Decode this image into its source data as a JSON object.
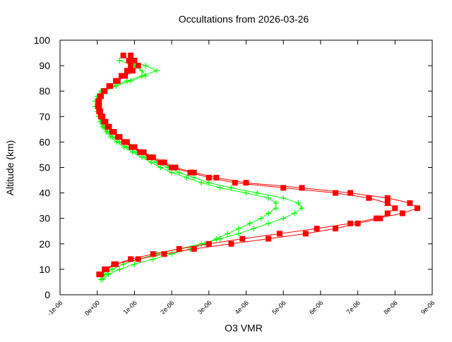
{
  "chart_data": {
    "type": "scatter",
    "title": "Occultations from 2026-03-26",
    "xlabel": "O3 VMR",
    "ylabel": "Altitude (km)",
    "xlim": [
      -1e-06,
      9e-06
    ],
    "ylim": [
      0,
      100
    ],
    "xticks": [
      -1e-06,
      0,
      1e-06,
      2e-06,
      3e-06,
      4e-06,
      5e-06,
      6e-06,
      7e-06,
      8e-06,
      9e-06
    ],
    "xtick_labels": [
      "-1e-06",
      "0e+00",
      "1e-06",
      "2e-06",
      "3e-06",
      "4e-06",
      "5e-06",
      "6e-06",
      "7e-06",
      "8e-06",
      "9e-06"
    ],
    "yticks": [
      0,
      10,
      20,
      30,
      40,
      50,
      60,
      70,
      80,
      90,
      100
    ],
    "ytick_labels": [
      "0",
      "10",
      "20",
      "30",
      "40",
      "50",
      "60",
      "70",
      "80",
      "90",
      "100"
    ],
    "grid": false,
    "legend": "none",
    "series": [
      {
        "color": "#00ff00",
        "marker": "plus",
        "profiles": [
          {
            "altitude": [
              6,
              8,
              10,
              12,
              14,
              16,
              18,
              20,
              22,
              24,
              26,
              28,
              30,
              32,
              34,
              36,
              38,
              40,
              42,
              44,
              46,
              48,
              50,
              52,
              54,
              56,
              58,
              60,
              62,
              64,
              66,
              68,
              70,
              72,
              74,
              76,
              78,
              80,
              82,
              84,
              86,
              88,
              90,
              92
            ],
            "vmr": [
              1e-07,
              2e-07,
              4e-07,
              7e-07,
              1.1e-06,
              1.6e-06,
              2.2e-06,
              2.8e-06,
              3.3e-06,
              3.8e-06,
              4.2e-06,
              4.6e-06,
              5e-06,
              5.3e-06,
              5.5e-06,
              5.4e-06,
              5e-06,
              4.3e-06,
              3.6e-06,
              3e-06,
              2.6e-06,
              2.2e-06,
              1.9e-06,
              1.6e-06,
              1.3e-06,
              1.05e-06,
              8e-07,
              6e-07,
              4.2e-07,
              2.8e-07,
              1.8e-07,
              1e-07,
              5e-08,
              0,
              -5e-08,
              -5e-08,
              0,
              1e-07,
              4e-07,
              8e-07,
              1.2e-06,
              1.6e-06,
              1.3e-06,
              9e-07
            ]
          },
          {
            "altitude": [
              6,
              8,
              10,
              12,
              14,
              16,
              18,
              20,
              22,
              24,
              26,
              28,
              30,
              32,
              34,
              36,
              38,
              40,
              42,
              44,
              46,
              48,
              50,
              52,
              54,
              56,
              58,
              60,
              62,
              64,
              66,
              68,
              70,
              72,
              74,
              76,
              78,
              80,
              82,
              84,
              86,
              88,
              90,
              92
            ],
            "vmr": [
              1.5e-07,
              3e-07,
              6e-07,
              1e-06,
              1.5e-06,
              2e-06,
              2.5e-06,
              2.9e-06,
              3.2e-06,
              3.5e-06,
              3.8e-06,
              4.1e-06,
              4.4e-06,
              4.6e-06,
              4.8e-06,
              4.8e-06,
              4.6e-06,
              4e-06,
              3.3e-06,
              2.8e-06,
              2.4e-06,
              2e-06,
              1.7e-06,
              1.45e-06,
              1.2e-06,
              9.5e-07,
              7.2e-07,
              5.2e-07,
              3.6e-07,
              2.4e-07,
              1.4e-07,
              8e-08,
              3e-08,
              0,
              0,
              2e-08,
              5e-08,
              2e-07,
              5e-07,
              9e-07,
              1.3e-06,
              1.2e-06,
              1e-06,
              6e-07
            ]
          }
        ]
      },
      {
        "color": "#ff0000",
        "marker": "square",
        "profiles": [
          {
            "altitude": [
              8,
              10,
              12,
              14,
              16,
              18,
              20,
              22,
              24,
              26,
              28,
              30,
              32,
              34,
              36,
              38,
              40,
              42,
              44,
              46,
              48,
              50,
              52,
              54,
              56,
              58,
              60,
              62,
              64,
              66,
              68,
              70,
              72,
              74,
              76,
              78,
              80,
              82,
              84,
              86,
              88,
              90,
              92,
              94
            ],
            "vmr": [
              1e-07,
              2.5e-07,
              5e-07,
              9e-07,
              1.5e-06,
              2.2e-06,
              3e-06,
              3.9e-06,
              4.9e-06,
              5.9e-06,
              6.8e-06,
              7.5e-06,
              8.2e-06,
              8.6e-06,
              8.4e-06,
              7.8e-06,
              6.8e-06,
              5.5e-06,
              4e-06,
              3.2e-06,
              2.6e-06,
              2.1e-06,
              1.8e-06,
              1.5e-06,
              1.25e-06,
              1e-06,
              8e-07,
              6e-07,
              4.5e-07,
              3.2e-07,
              2.2e-07,
              1.4e-07,
              8e-08,
              5e-08,
              5e-08,
              1e-07,
              2e-07,
              3.5e-07,
              5e-07,
              6.5e-07,
              8e-07,
              9e-07,
              8.5e-07,
              7e-07
            ]
          },
          {
            "altitude": [
              8,
              10,
              12,
              14,
              16,
              18,
              20,
              22,
              24,
              26,
              28,
              30,
              32,
              34,
              36,
              38,
              40,
              42,
              44,
              46,
              48,
              50,
              52,
              54,
              56,
              58,
              60,
              62,
              64,
              66,
              68,
              70,
              72,
              74,
              76,
              78,
              80,
              82,
              84,
              86,
              88,
              90,
              92,
              94
            ],
            "vmr": [
              5e-08,
              2e-07,
              4.5e-07,
              1.1e-06,
              1.8e-06,
              2.6e-06,
              3.6e-06,
              4.6e-06,
              5.6e-06,
              6.4e-06,
              7e-06,
              7.6e-06,
              7.8e-06,
              8e-06,
              7.8e-06,
              7.3e-06,
              6.4e-06,
              5e-06,
              3.7e-06,
              3e-06,
              2.5e-06,
              2e-06,
              1.7e-06,
              1.4e-06,
              1.15e-06,
              9.2e-07,
              7.2e-07,
              5.5e-07,
              4e-07,
              2.8e-07,
              1.8e-07,
              1e-07,
              5e-08,
              2e-08,
              3e-08,
              8e-08,
              1.8e-07,
              3.2e-07,
              5.5e-07,
              7.5e-07,
              9.5e-07,
              1.1e-06,
              1e-06,
              9e-07
            ]
          }
        ]
      }
    ]
  }
}
